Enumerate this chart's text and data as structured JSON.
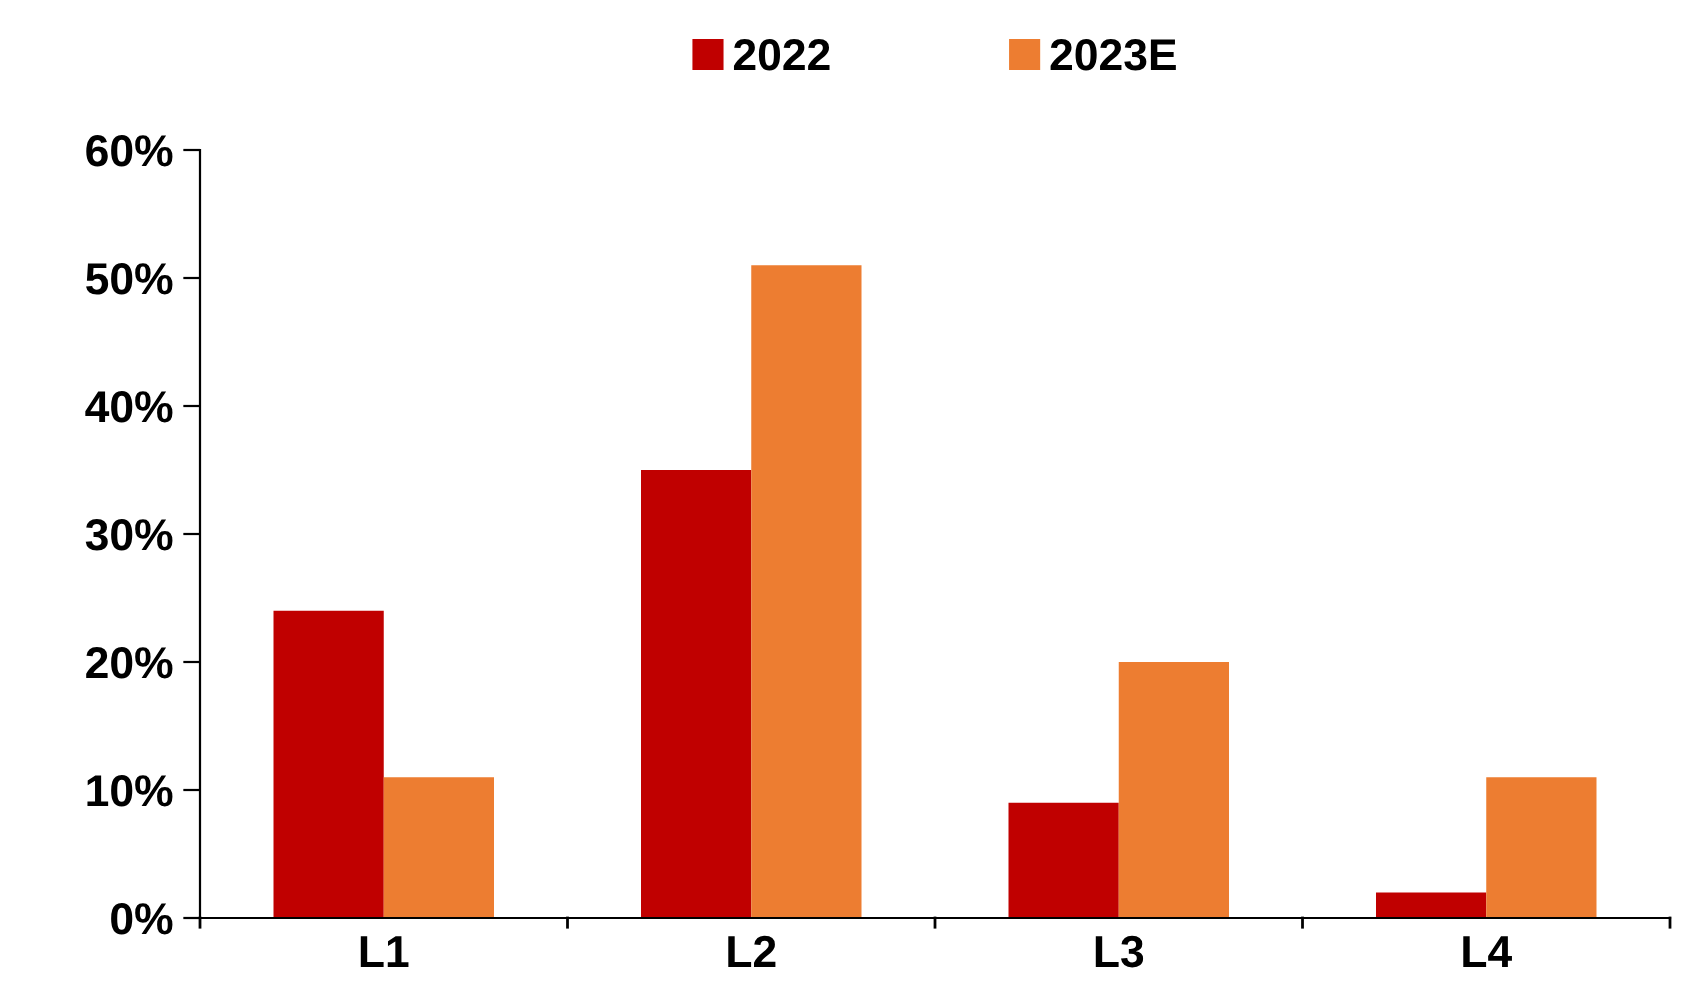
{
  "chart_data": {
    "type": "bar",
    "categories": [
      "L1",
      "L2",
      "L3",
      "L4"
    ],
    "series": [
      {
        "name": "2022",
        "color": "#c00000",
        "values": [
          24,
          35,
          9,
          2
        ]
      },
      {
        "name": "2023E",
        "color": "#ed7d31",
        "values": [
          11,
          51,
          20,
          11
        ]
      }
    ],
    "ylim": [
      0,
      60
    ],
    "yticks": [
      {
        "value": 0,
        "label": "0%"
      },
      {
        "value": 10,
        "label": "10%"
      },
      {
        "value": 20,
        "label": "20%"
      },
      {
        "value": 30,
        "label": "30%"
      },
      {
        "value": 40,
        "label": "40%"
      },
      {
        "value": 50,
        "label": "50%"
      },
      {
        "value": 60,
        "label": "60%"
      }
    ],
    "grid": false,
    "legend": "top"
  }
}
